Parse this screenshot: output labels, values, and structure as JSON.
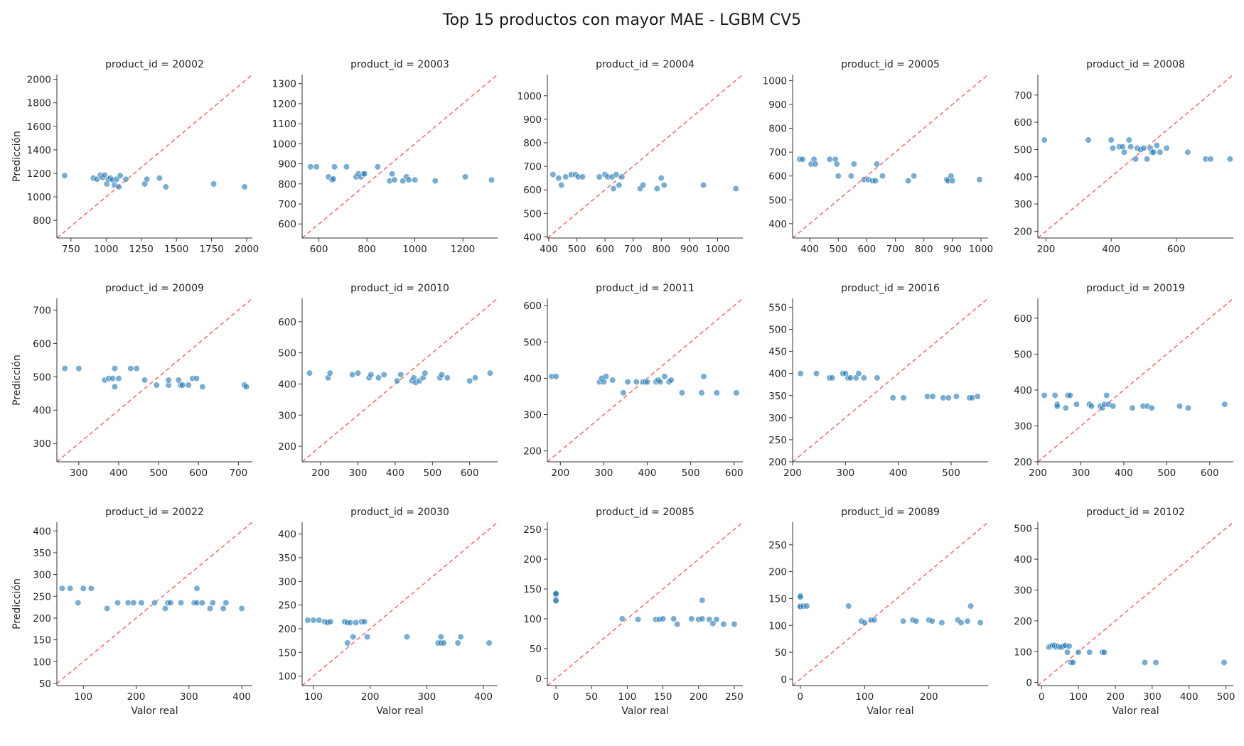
{
  "title": "Top 15 productos con mayor MAE - LGBM CV5",
  "colors": {
    "points": "#1f77b4",
    "diagonal": "#f05a52",
    "axes": "#333333"
  },
  "chart_data": [
    {
      "type": "scatter",
      "title": "product_id = 20002",
      "xlabel": "",
      "ylabel": "Predicción",
      "xlim": [
        650,
        2040
      ],
      "ylim": [
        650,
        2040
      ],
      "xticks": [
        750,
        1000,
        1250,
        1500,
        1750,
        2000
      ],
      "yticks": [
        800,
        1000,
        1200,
        1400,
        1600,
        1800,
        2000
      ],
      "x": [
        705,
        910,
        935,
        960,
        975,
        990,
        1005,
        1015,
        1030,
        1045,
        1060,
        1075,
        1090,
        1100,
        1140,
        1275,
        1290,
        1380,
        1425,
        1765,
        1985
      ],
      "y": [
        1180,
        1160,
        1150,
        1185,
        1165,
        1185,
        1110,
        1150,
        1160,
        1145,
        1100,
        1150,
        1085,
        1180,
        1150,
        1110,
        1150,
        1160,
        1085,
        1110,
        1085
      ]
    },
    {
      "type": "scatter",
      "title": "product_id = 20003",
      "xlabel": "",
      "ylabel": "",
      "xlim": [
        530,
        1345
      ],
      "ylim": [
        530,
        1345
      ],
      "xticks": [
        600,
        800,
        1000,
        1200
      ],
      "yticks": [
        600,
        700,
        800,
        900,
        1000,
        1100,
        1200,
        1300
      ],
      "x": [
        565,
        590,
        640,
        655,
        660,
        665,
        715,
        755,
        765,
        775,
        785,
        790,
        845,
        895,
        905,
        915,
        950,
        965,
        975,
        1000,
        1085,
        1210,
        1320
      ],
      "y": [
        885,
        885,
        835,
        820,
        825,
        885,
        885,
        835,
        850,
        835,
        850,
        850,
        885,
        815,
        850,
        820,
        815,
        835,
        820,
        820,
        815,
        835,
        820
      ]
    },
    {
      "type": "scatter",
      "title": "product_id = 20004",
      "xlabel": "",
      "ylabel": "",
      "xlim": [
        395,
        1090
      ],
      "ylim": [
        395,
        1090
      ],
      "xticks": [
        400,
        500,
        600,
        700,
        800,
        900,
        1000
      ],
      "yticks": [
        400,
        500,
        600,
        700,
        800,
        900,
        1000
      ],
      "x": [
        415,
        435,
        445,
        460,
        480,
        495,
        505,
        520,
        580,
        600,
        610,
        625,
        630,
        640,
        650,
        660,
        725,
        735,
        785,
        800,
        810,
        950,
        1065
      ],
      "y": [
        665,
        650,
        620,
        655,
        665,
        665,
        655,
        655,
        655,
        665,
        655,
        655,
        605,
        665,
        620,
        655,
        605,
        620,
        605,
        650,
        620,
        620,
        605
      ]
    },
    {
      "type": "scatter",
      "title": "product_id = 20005",
      "xlabel": "",
      "ylabel": "",
      "xlim": [
        340,
        1025
      ],
      "ylim": [
        340,
        1025
      ],
      "xticks": [
        400,
        500,
        600,
        700,
        800,
        900,
        1000
      ],
      "yticks": [
        400,
        500,
        600,
        700,
        800,
        900,
        1000
      ],
      "x": [
        365,
        375,
        405,
        415,
        420,
        470,
        490,
        495,
        500,
        545,
        555,
        590,
        605,
        620,
        630,
        635,
        655,
        745,
        765,
        880,
        885,
        895,
        900,
        995
      ],
      "y": [
        670,
        670,
        650,
        670,
        650,
        670,
        670,
        650,
        600,
        600,
        650,
        585,
        585,
        580,
        580,
        650,
        600,
        580,
        600,
        585,
        580,
        600,
        580,
        585
      ]
    },
    {
      "type": "scatter",
      "title": "product_id = 20008",
      "xlabel": "",
      "ylabel": "",
      "xlim": [
        175,
        775
      ],
      "ylim": [
        175,
        775
      ],
      "xticks": [
        200,
        400,
        600
      ],
      "yticks": [
        200,
        300,
        400,
        500,
        600,
        700
      ],
      "x": [
        195,
        330,
        400,
        405,
        425,
        435,
        440,
        455,
        460,
        475,
        480,
        490,
        500,
        510,
        520,
        525,
        530,
        540,
        550,
        570,
        635,
        690,
        705,
        765
      ],
      "y": [
        535,
        535,
        535,
        505,
        510,
        510,
        490,
        535,
        510,
        465,
        505,
        500,
        505,
        465,
        505,
        490,
        490,
        515,
        490,
        505,
        490,
        465,
        465,
        465
      ]
    },
    {
      "type": "scatter",
      "title": "product_id = 20009",
      "xlabel": "",
      "ylabel": "Predicción",
      "xlim": [
        245,
        735
      ],
      "ylim": [
        245,
        735
      ],
      "xticks": [
        300,
        400,
        500,
        600,
        700
      ],
      "yticks": [
        300,
        400,
        500,
        600,
        700
      ],
      "x": [
        265,
        300,
        365,
        375,
        385,
        390,
        390,
        400,
        430,
        445,
        465,
        495,
        525,
        525,
        550,
        555,
        560,
        575,
        585,
        595,
        610,
        715,
        720
      ],
      "y": [
        525,
        525,
        490,
        495,
        495,
        470,
        525,
        495,
        525,
        525,
        490,
        475,
        475,
        490,
        490,
        475,
        475,
        475,
        495,
        495,
        470,
        475,
        470
      ]
    },
    {
      "type": "scatter",
      "title": "product_id = 20010",
      "xlabel": "",
      "ylabel": "",
      "xlim": [
        150,
        675
      ],
      "ylim": [
        150,
        675
      ],
      "xticks": [
        200,
        300,
        400,
        500,
        600
      ],
      "yticks": [
        200,
        300,
        400,
        500,
        600
      ],
      "x": [
        170,
        220,
        225,
        285,
        300,
        330,
        335,
        355,
        370,
        405,
        415,
        445,
        450,
        455,
        465,
        475,
        480,
        520,
        525,
        540,
        600,
        615,
        655
      ],
      "y": [
        435,
        420,
        435,
        430,
        435,
        420,
        430,
        420,
        430,
        410,
        430,
        410,
        420,
        405,
        410,
        420,
        435,
        420,
        430,
        420,
        410,
        420,
        435
      ]
    },
    {
      "type": "scatter",
      "title": "product_id = 20011",
      "xlabel": "",
      "ylabel": "",
      "xlim": [
        170,
        620
      ],
      "ylim": [
        170,
        620
      ],
      "xticks": [
        200,
        300,
        400,
        500,
        600
      ],
      "yticks": [
        200,
        300,
        400,
        500,
        600
      ],
      "x": [
        180,
        190,
        290,
        295,
        300,
        305,
        320,
        345,
        355,
        375,
        390,
        395,
        400,
        420,
        425,
        430,
        440,
        450,
        455,
        480,
        525,
        530,
        560,
        605
      ],
      "y": [
        405,
        405,
        390,
        400,
        390,
        405,
        395,
        360,
        390,
        390,
        390,
        390,
        390,
        390,
        395,
        390,
        405,
        390,
        395,
        360,
        360,
        405,
        360,
        360
      ]
    },
    {
      "type": "scatter",
      "title": "product_id = 20016",
      "xlabel": "",
      "ylabel": "",
      "xlim": [
        200,
        570
      ],
      "ylim": [
        200,
        570
      ],
      "xticks": [
        200,
        300,
        400,
        500
      ],
      "yticks": [
        200,
        250,
        300,
        350,
        400,
        450,
        500,
        550
      ],
      "x": [
        215,
        245,
        270,
        275,
        295,
        300,
        305,
        310,
        320,
        325,
        335,
        360,
        390,
        410,
        455,
        465,
        485,
        495,
        510,
        535,
        540,
        550
      ],
      "y": [
        400,
        400,
        390,
        390,
        400,
        400,
        390,
        390,
        390,
        400,
        390,
        390,
        345,
        345,
        348,
        348,
        345,
        345,
        348,
        345,
        345,
        348
      ]
    },
    {
      "type": "scatter",
      "title": "product_id = 20019",
      "xlabel": "",
      "ylabel": "",
      "xlim": [
        200,
        655
      ],
      "ylim": [
        200,
        655
      ],
      "xticks": [
        200,
        300,
        400,
        500,
        600
      ],
      "yticks": [
        200,
        300,
        400,
        500,
        600
      ],
      "x": [
        215,
        240,
        245,
        245,
        265,
        270,
        275,
        290,
        320,
        325,
        345,
        350,
        355,
        360,
        365,
        375,
        420,
        445,
        455,
        465,
        530,
        550,
        635
      ],
      "y": [
        385,
        385,
        360,
        355,
        350,
        385,
        385,
        360,
        360,
        355,
        355,
        350,
        360,
        385,
        360,
        355,
        350,
        355,
        355,
        350,
        355,
        350,
        360
      ]
    },
    {
      "type": "scatter",
      "title": "product_id = 20022",
      "xlabel": "Valor real",
      "ylabel": "Predicción",
      "xlim": [
        50,
        420
      ],
      "ylim": [
        45,
        420
      ],
      "xticks": [
        100,
        200,
        300,
        400
      ],
      "yticks": [
        50,
        100,
        150,
        200,
        250,
        300,
        350,
        400
      ],
      "x": [
        60,
        75,
        90,
        100,
        115,
        145,
        165,
        185,
        195,
        210,
        235,
        255,
        260,
        265,
        285,
        310,
        315,
        315,
        325,
        340,
        345,
        365,
        370,
        400
      ],
      "y": [
        268,
        268,
        235,
        268,
        268,
        222,
        235,
        235,
        235,
        235,
        235,
        222,
        235,
        235,
        235,
        235,
        235,
        268,
        235,
        222,
        235,
        222,
        235,
        222
      ]
    },
    {
      "type": "scatter",
      "title": "product_id = 20030",
      "xlabel": "Valor real",
      "ylabel": "",
      "xlim": [
        80,
        425
      ],
      "ylim": [
        80,
        425
      ],
      "xticks": [
        100,
        200,
        300,
        400
      ],
      "yticks": [
        100,
        150,
        200,
        250,
        300,
        350,
        400
      ],
      "x": [
        90,
        100,
        110,
        120,
        125,
        130,
        155,
        160,
        160,
        165,
        170,
        175,
        185,
        190,
        195,
        265,
        320,
        325,
        325,
        330,
        355,
        360,
        410
      ],
      "y": [
        218,
        218,
        218,
        215,
        213,
        215,
        215,
        213,
        170,
        213,
        183,
        213,
        215,
        215,
        183,
        183,
        170,
        170,
        183,
        170,
        170,
        183,
        170
      ]
    },
    {
      "type": "scatter",
      "title": "product_id = 20085",
      "xlabel": "Valor real",
      "ylabel": "",
      "xlim": [
        -12,
        262
      ],
      "ylim": [
        -12,
        262
      ],
      "xticks": [
        0,
        50,
        100,
        150,
        200,
        250
      ],
      "yticks": [
        0,
        50,
        100,
        150,
        200,
        250
      ],
      "x": [
        0,
        0,
        0,
        0,
        0,
        93,
        115,
        140,
        145,
        150,
        165,
        170,
        190,
        200,
        205,
        205,
        215,
        220,
        225,
        235,
        250
      ],
      "y": [
        140,
        143,
        132,
        130,
        142,
        100,
        99,
        99,
        99,
        100,
        100,
        91,
        100,
        99,
        131,
        100,
        99,
        92,
        99,
        91,
        91
      ]
    },
    {
      "type": "scatter",
      "title": "product_id = 20089",
      "xlabel": "Valor real",
      "ylabel": "",
      "xlim": [
        -12,
        292
      ],
      "ylim": [
        -12,
        292
      ],
      "xticks": [
        0,
        100,
        200
      ],
      "yticks": [
        0,
        50,
        100,
        150,
        200,
        250
      ],
      "x": [
        0,
        0,
        0,
        0,
        5,
        10,
        75,
        95,
        100,
        110,
        115,
        160,
        175,
        180,
        200,
        205,
        220,
        245,
        250,
        260,
        265,
        280
      ],
      "y": [
        155,
        153,
        136,
        135,
        136,
        136,
        136,
        108,
        105,
        110,
        110,
        108,
        110,
        108,
        110,
        108,
        105,
        110,
        105,
        108,
        136,
        105
      ]
    },
    {
      "type": "scatter",
      "title": "product_id = 20102",
      "xlabel": "Valor real",
      "ylabel": "",
      "xlim": [
        -10,
        520
      ],
      "ylim": [
        -10,
        520
      ],
      "xticks": [
        0,
        100,
        200,
        300,
        400,
        500
      ],
      "yticks": [
        0,
        100,
        200,
        300,
        400,
        500
      ],
      "x": [
        20,
        25,
        30,
        35,
        40,
        45,
        50,
        55,
        60,
        65,
        70,
        75,
        80,
        85,
        100,
        130,
        165,
        170,
        280,
        310,
        495
      ],
      "y": [
        115,
        118,
        120,
        120,
        115,
        118,
        115,
        115,
        118,
        120,
        98,
        118,
        65,
        65,
        98,
        98,
        98,
        98,
        65,
        65,
        65
      ]
    }
  ]
}
